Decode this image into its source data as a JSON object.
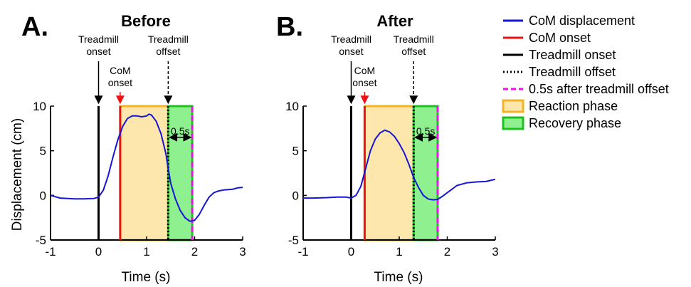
{
  "colors": {
    "com_line": "#1515d8",
    "com_onset": "#ee1111",
    "treadmill_onset": "#000000",
    "treadmill_offset": "#000000",
    "after_offset": "#ee11ee",
    "reaction_fill": "#fde7ad",
    "reaction_edge": "#f5b324",
    "recovery_fill": "#8ef08e",
    "recovery_edge": "#1fc01f"
  },
  "legend": {
    "items": [
      {
        "label": "CoM displacement",
        "style": "solid",
        "color": "#1515d8",
        "kind": "line"
      },
      {
        "label": "CoM onset",
        "style": "solid",
        "color": "#ee1111",
        "kind": "line"
      },
      {
        "label": "Treadmill onset",
        "style": "solid",
        "color": "#000000",
        "kind": "line"
      },
      {
        "label": "Treadmill offset",
        "style": "dotted",
        "color": "#000000",
        "kind": "line"
      },
      {
        "label": "0.5s after treadmill offset",
        "style": "dashed",
        "color": "#ee11ee",
        "kind": "line"
      },
      {
        "label": "Reaction phase",
        "color": "#fde7ad",
        "edge": "#f5b324",
        "kind": "box"
      },
      {
        "label": "Recovery phase",
        "color": "#8ef08e",
        "edge": "#1fc01f",
        "kind": "box"
      }
    ]
  },
  "chart_data": [
    {
      "type": "line",
      "panel_label": "A.",
      "title": "Before",
      "xlabel": "Time (s)",
      "ylabel": "Displacement (cm)",
      "xlim": [
        -1,
        3
      ],
      "ylim": [
        -5,
        10
      ],
      "xticks": [
        -1,
        0,
        1,
        2,
        3
      ],
      "yticks": [
        -5,
        0,
        5,
        10
      ],
      "treadmill_onset": 0,
      "com_onset": 0.45,
      "treadmill_offset": 1.45,
      "after_offset": 1.95,
      "annotations": {
        "treadmill_onset": "Treadmill\nonset",
        "com_onset": "CoM\nonset",
        "treadmill_offset": "Treadmill\noffset",
        "interval": "0.5s"
      },
      "series": [
        {
          "x": [
            -1,
            -0.8,
            -0.5,
            -0.3,
            -0.1,
            0,
            0.1,
            0.2,
            0.3,
            0.4,
            0.5,
            0.6,
            0.7,
            0.8,
            0.9,
            1.0,
            1.05,
            1.1,
            1.2,
            1.3,
            1.4,
            1.45,
            1.5,
            1.6,
            1.7,
            1.8,
            1.9,
            2.0,
            2.1,
            2.2,
            2.3,
            2.4,
            2.5,
            2.6,
            2.7,
            2.8,
            2.9,
            3.0
          ],
          "y": [
            0,
            -0.3,
            -0.4,
            -0.4,
            -0.35,
            -0.2,
            0.6,
            2.2,
            4.3,
            6.2,
            7.7,
            8.6,
            8.9,
            8.9,
            8.8,
            8.9,
            9.1,
            9.0,
            8.3,
            6.9,
            4.7,
            3.0,
            1.4,
            -0.4,
            -1.7,
            -2.5,
            -2.9,
            -2.8,
            -2.1,
            -1.1,
            -0.2,
            0.3,
            0.5,
            0.6,
            0.65,
            0.7,
            0.85,
            0.9
          ]
        }
      ]
    },
    {
      "type": "line",
      "panel_label": "B.",
      "title": "After",
      "xlabel": "Time (s)",
      "ylabel": "",
      "xlim": [
        -1,
        3
      ],
      "ylim": [
        -5,
        10
      ],
      "xticks": [
        -1,
        0,
        1,
        2,
        3
      ],
      "yticks": [
        -5,
        0,
        5,
        10
      ],
      "treadmill_onset": 0,
      "com_onset": 0.28,
      "treadmill_offset": 1.3,
      "after_offset": 1.8,
      "annotations": {
        "treadmill_onset": "Treadmill\nonset",
        "com_onset": "CoM\nonset",
        "treadmill_offset": "Treadmill\noffset",
        "interval": "0.5s"
      },
      "series": [
        {
          "x": [
            -1,
            -0.8,
            -0.5,
            -0.3,
            -0.1,
            0,
            0.1,
            0.2,
            0.3,
            0.4,
            0.5,
            0.6,
            0.7,
            0.8,
            0.9,
            1.0,
            1.1,
            1.2,
            1.3,
            1.4,
            1.5,
            1.6,
            1.7,
            1.8,
            1.9,
            2.0,
            2.1,
            2.2,
            2.4,
            2.6,
            2.8,
            3.0
          ],
          "y": [
            -0.3,
            -0.3,
            -0.25,
            -0.2,
            -0.2,
            -0.3,
            0.0,
            1.0,
            3.0,
            5.0,
            6.3,
            7.0,
            7.3,
            7.1,
            6.6,
            5.8,
            4.8,
            3.5,
            2.0,
            0.9,
            0.0,
            -0.4,
            -0.5,
            -0.45,
            -0.1,
            0.3,
            0.7,
            1.1,
            1.4,
            1.5,
            1.55,
            1.8
          ]
        }
      ]
    }
  ]
}
